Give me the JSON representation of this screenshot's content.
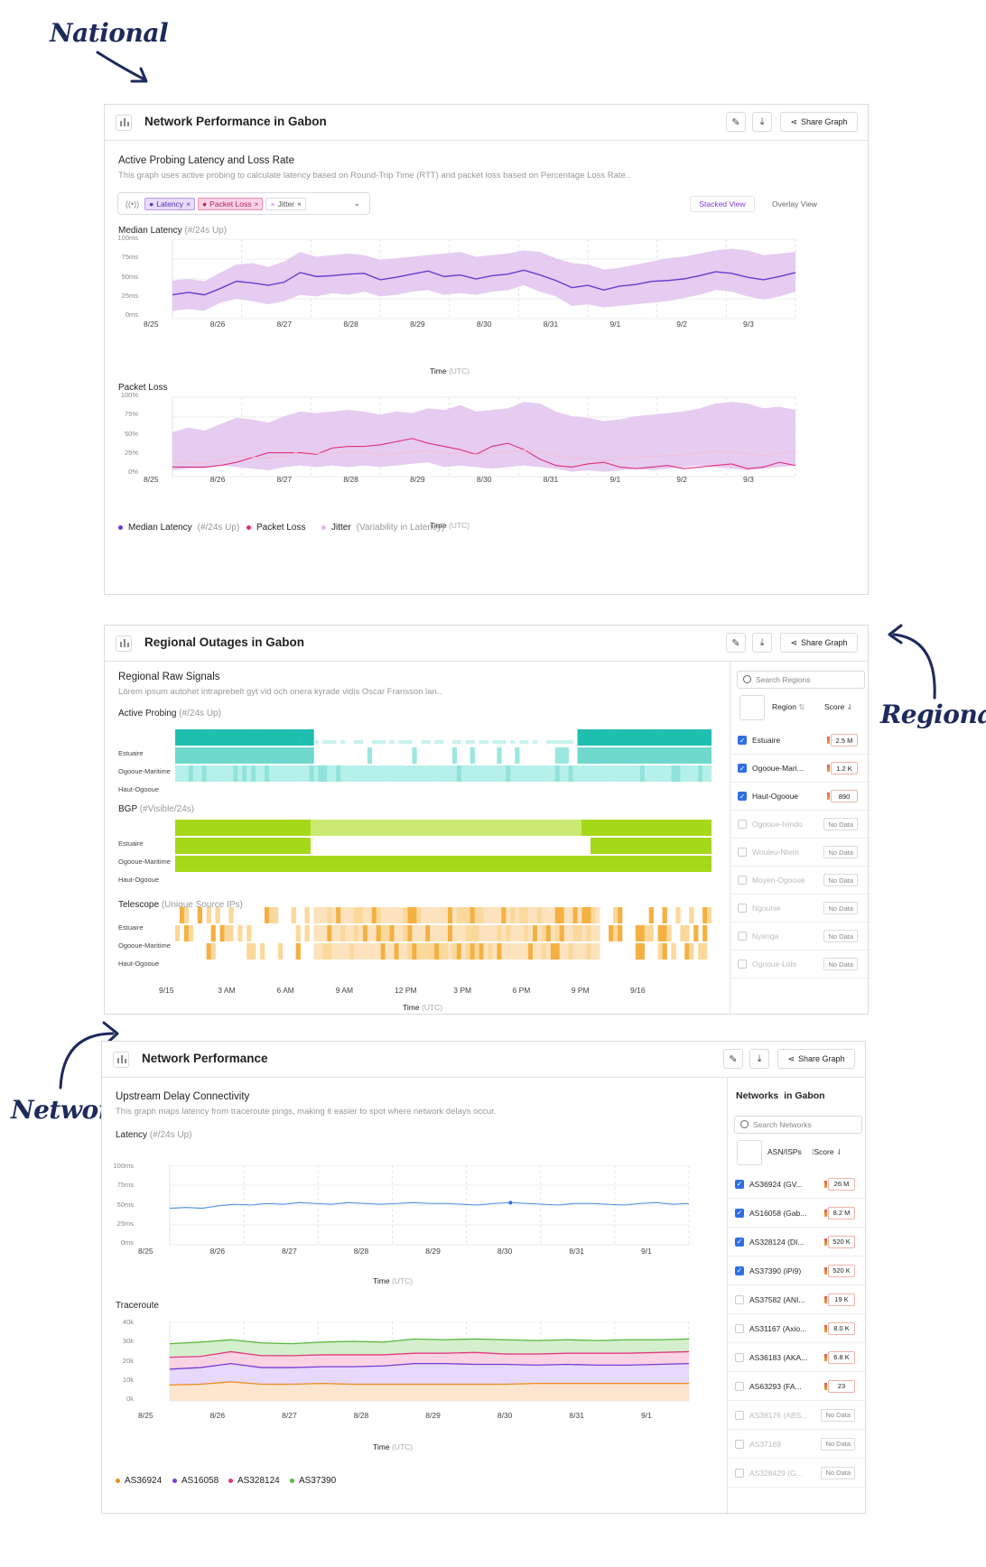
{
  "annotations": {
    "national": "National",
    "regional": "Regional",
    "network": "Network"
  },
  "card1": {
    "title": "Network Performance in Gabon",
    "share": "Share Graph",
    "section_title": "Active Probing Latency and Loss Rate",
    "section_desc": "This graph uses active probing to calculate latency based on Round-Trip Time (RTT) and packet loss based on Percentage Loss Rate..",
    "tags": [
      "Latency",
      "Packet Loss",
      "Jitter"
    ],
    "views": {
      "stacked": "Stacked View",
      "overlay": "Overlay View"
    },
    "latency_label": "Median Latency",
    "latency_sub": "(#/24s Up)",
    "loss_label": "Packet Loss",
    "yticks_latency": [
      "100ms",
      "75ms",
      "50ms",
      "25ms",
      "0ms"
    ],
    "yticks_loss": [
      "100%",
      "75%",
      "50%",
      "25%",
      "0%"
    ],
    "xticks": [
      "8/25",
      "8/26",
      "8/27",
      "8/28",
      "8/29",
      "8/30",
      "8/31",
      "9/1",
      "9/2",
      "9/3"
    ],
    "axis": "Time",
    "axis_sub": "(UTC)",
    "legend": [
      {
        "label": "Median Latency",
        "sub": "(#/24s Up)",
        "color": "#6a3bd0"
      },
      {
        "label": "Packet Loss",
        "sub": "",
        "color": "#e0307a"
      },
      {
        "label": "Jitter",
        "sub": "(Variability in Latency)",
        "color": "#e2b6ee"
      }
    ]
  },
  "card2": {
    "title": "Regional Outages in Gabon",
    "share": "Share Graph",
    "section_title": "Regional Raw Signals",
    "section_desc": "Lörem ipsum autohet intraprebelt gyt vid och onera kyrade vidis Oscar Fransson lan..",
    "ap_label": "Active Probing",
    "ap_sub": "(#/24s Up)",
    "bgp_label": "BGP",
    "bgp_sub": "(#Visible/24s)",
    "tel_label": "Telescope",
    "tel_sub": "(Unique Source IPs)",
    "regions": [
      "Estuaire",
      "Ogooue-Maritime",
      "Haut-Ogooue"
    ],
    "xticks": [
      "9/15",
      "3 AM",
      "6 AM",
      "9 AM",
      "12 PM",
      "3 PM",
      "6 PM",
      "9 PM",
      "9/16"
    ],
    "axis": "Time",
    "axis_sub": "(UTC)",
    "search_placeholder": "Search Regions",
    "col_region": "Region",
    "col_score": "Score",
    "rows": [
      {
        "name": "Estuaire",
        "score": "2.5 M",
        "on": true
      },
      {
        "name": "Ogooue-Mari...",
        "score": "1.2 K",
        "on": true
      },
      {
        "name": "Haut-Ogooue",
        "score": "890",
        "on": true
      },
      {
        "name": "Ogooue-Ivindo",
        "score": "No Data",
        "on": false
      },
      {
        "name": "Wouleu-Ntem",
        "score": "No Data",
        "on": false
      },
      {
        "name": "Moyen-Ogooue",
        "score": "No Data",
        "on": false
      },
      {
        "name": "Ngounie",
        "score": "No Data",
        "on": false
      },
      {
        "name": "Nyanga",
        "score": "No Data",
        "on": false
      },
      {
        "name": "Ogooue-Lolo",
        "score": "No Data",
        "on": false
      }
    ]
  },
  "card3": {
    "title": "Network Performance",
    "share": "Share Graph",
    "section_title": "Upstream Delay Connectivity",
    "section_desc": "This graph maps latency from traceroute pings, making it easier to spot where network delays occur.",
    "latency_label": "Latency",
    "latency_sub": "(#/24s Up)",
    "yticks_latency": [
      "100ms",
      "75ms",
      "50ms",
      "25ms",
      "0ms"
    ],
    "xticks": [
      "8/25",
      "8/26",
      "8/27",
      "8/28",
      "8/29",
      "8/30",
      "8/31",
      "9/1"
    ],
    "axis": "Time",
    "axis_sub": "(UTC)",
    "trace_label": "Traceroute",
    "yticks_trace": [
      "40k",
      "30k",
      "20k",
      "10k",
      "0k"
    ],
    "legend": [
      {
        "label": "AS36924",
        "color": "#f08a1c"
      },
      {
        "label": "AS16058",
        "color": "#7a3bd6"
      },
      {
        "label": "AS328124",
        "color": "#e03a80"
      },
      {
        "label": "AS37390",
        "color": "#58b83a"
      }
    ],
    "side_title": "Networks  in Gabon",
    "search_placeholder": "Search Networks",
    "col_asn": "ASN/ISPs",
    "col_score": "Score",
    "rows": [
      {
        "name": "AS36924 (GV...",
        "score": "26 M",
        "on": true,
        "dim": false
      },
      {
        "name": "AS16058 (Gab...",
        "score": "8.2 M",
        "on": true,
        "dim": false
      },
      {
        "name": "AS328124 (DI...",
        "score": "520 K",
        "on": true,
        "dim": false
      },
      {
        "name": "AS37390 (iPi9)",
        "score": "520 K",
        "on": true,
        "dim": false
      },
      {
        "name": "AS37582 (ANI...",
        "score": "19 K",
        "on": false,
        "dim": false
      },
      {
        "name": "AS31167 (Axio...",
        "score": "8.0 K",
        "on": false,
        "dim": false
      },
      {
        "name": "AS36183 (AKA...",
        "score": "6.8 K",
        "on": false,
        "dim": false
      },
      {
        "name": "AS63293 (FA...",
        "score": "23",
        "on": false,
        "dim": false
      },
      {
        "name": "AS38176 (ABS...",
        "score": "No Data",
        "on": false,
        "dim": true
      },
      {
        "name": "AS37169",
        "score": "No Data",
        "on": false,
        "dim": true
      },
      {
        "name": "AS328429 (G...",
        "score": "No Data",
        "on": false,
        "dim": true
      }
    ]
  }
}
